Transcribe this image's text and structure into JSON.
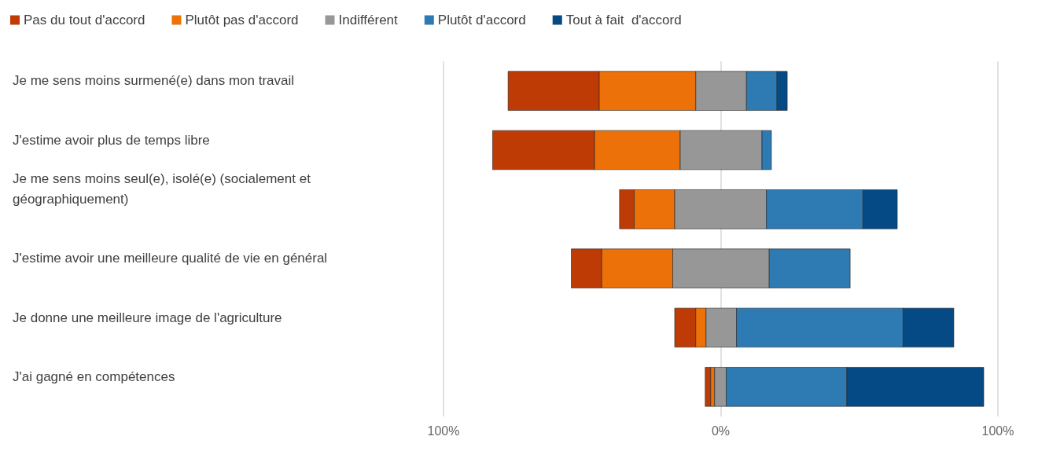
{
  "chart_data": {
    "type": "bar",
    "orientation": "horizontal",
    "categories": [
      "Je me sens moins surmené(e) dans mon travail",
      "J'estime avoir plus de temps libre",
      "Je me sens moins seul(e), isolé(e) (socialement et géographiquement)",
      "J'estime avoir une meilleure qualité de vie en général",
      "Je donne une meilleure image de l'agriculture",
      "J'ai gagné en compétences"
    ],
    "series": [
      {
        "name": "Pas du tout d'accord",
        "color": "#bf3b05",
        "base": [
          -76.7,
          -82.3,
          -36.5,
          -53.9,
          -16.6,
          -5.6
        ],
        "values": [
          32.9,
          36.8,
          5.3,
          11.0,
          7.6,
          2.0
        ]
      },
      {
        "name": "Plutôt pas d'accord",
        "color": "#ec7108",
        "base": [
          -43.8,
          -45.5,
          -31.2,
          -42.9,
          -9.0,
          -3.6
        ],
        "values": [
          34.8,
          30.9,
          14.6,
          25.6,
          3.7,
          1.4
        ]
      },
      {
        "name": "Indifférent",
        "color": "#979797",
        "base": [
          -9.0,
          -14.6,
          -16.6,
          -17.3,
          -5.3,
          -2.2
        ],
        "values": [
          18.3,
          29.5,
          33.1,
          34.8,
          11.0,
          4.2
        ]
      },
      {
        "name": "Plutôt d'accord",
        "color": "#2e7bb4",
        "base": [
          9.3,
          14.9,
          16.5,
          17.5,
          5.7,
          2.0
        ],
        "values": [
          11.0,
          3.4,
          34.8,
          29.2,
          60.1,
          43.5
        ]
      },
      {
        "name": "Tout à fait  d'accord",
        "color": "#064a85",
        "base": [
          20.3,
          null,
          51.3,
          null,
          65.8,
          45.5
        ],
        "values": [
          3.7,
          null,
          12.4,
          null,
          18.3,
          49.4
        ]
      }
    ],
    "xlim": [
      -100,
      100
    ],
    "xticks": [
      {
        "value": -100,
        "label": "100%"
      },
      {
        "value": 0,
        "label": "0%"
      },
      {
        "value": 100,
        "label": "100%"
      }
    ],
    "grid": "x",
    "legend": "top left"
  }
}
